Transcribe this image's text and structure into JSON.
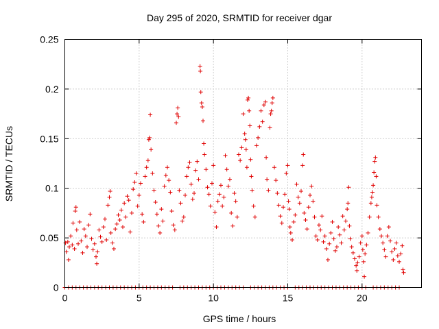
{
  "chart_data": {
    "type": "scatter",
    "title": "Day 295 of 2020, SRMTID for receiver dgar",
    "xlabel": "GPS time / hours",
    "ylabel": "SRMTID / TECUs",
    "xlim": [
      0,
      24
    ],
    "ylim": [
      0,
      0.25
    ],
    "x_ticks": [
      0,
      5,
      10,
      15,
      20
    ],
    "x_tick_labels": [
      "0",
      "5",
      "10",
      "15",
      "20"
    ],
    "y_ticks": [
      0,
      0.05,
      0.1,
      0.15,
      0.2,
      0.25
    ],
    "y_tick_labels": [
      "0",
      "0.05",
      "0.1",
      "0.15",
      "0.2",
      "0.25"
    ],
    "grid": true,
    "marker": "+",
    "color": "#e00000",
    "series": [
      {
        "name": "SRMTID",
        "points": [
          [
            0.05,
            0.045
          ],
          [
            0.1,
            0.036
          ],
          [
            0.2,
            0.046
          ],
          [
            0.25,
            0.028
          ],
          [
            0.3,
            0.041
          ],
          [
            0.4,
            0.052
          ],
          [
            0.5,
            0.043
          ],
          [
            0.55,
            0.065
          ],
          [
            0.65,
            0.039
          ],
          [
            0.7,
            0.077
          ],
          [
            0.75,
            0.081
          ],
          [
            0.8,
            0.058
          ],
          [
            0.9,
            0.044
          ],
          [
            1.0,
            0.066
          ],
          [
            1.1,
            0.047
          ],
          [
            1.2,
            0.035
          ],
          [
            1.3,
            0.059
          ],
          [
            1.4,
            0.052
          ],
          [
            1.5,
            0.041
          ],
          [
            1.6,
            0.063
          ],
          [
            1.7,
            0.074
          ],
          [
            1.8,
            0.049
          ],
          [
            1.9,
            0.038
          ],
          [
            2.0,
            0.044
          ],
          [
            2.1,
            0.031
          ],
          [
            2.15,
            0.024
          ],
          [
            2.2,
            0.036
          ],
          [
            2.3,
            0.058
          ],
          [
            2.4,
            0.051
          ],
          [
            2.5,
            0.046
          ],
          [
            2.6,
            0.061
          ],
          [
            2.7,
            0.069
          ],
          [
            2.8,
            0.048
          ],
          [
            2.9,
            0.083
          ],
          [
            3.0,
            0.091
          ],
          [
            3.05,
            0.097
          ],
          [
            3.1,
            0.055
          ],
          [
            3.2,
            0.045
          ],
          [
            3.3,
            0.039
          ],
          [
            3.4,
            0.059
          ],
          [
            3.5,
            0.064
          ],
          [
            3.6,
            0.073
          ],
          [
            3.7,
            0.068
          ],
          [
            3.8,
            0.078
          ],
          [
            3.9,
            0.061
          ],
          [
            4.0,
            0.085
          ],
          [
            4.1,
            0.071
          ],
          [
            4.2,
            0.092
          ],
          [
            4.3,
            0.088
          ],
          [
            4.4,
            0.056
          ],
          [
            4.5,
            0.075
          ],
          [
            4.6,
            0.099
          ],
          [
            4.7,
            0.106
          ],
          [
            4.8,
            0.115
          ],
          [
            4.9,
            0.082
          ],
          [
            5.0,
            0.093
          ],
          [
            5.1,
            0.105
          ],
          [
            5.2,
            0.074
          ],
          [
            5.3,
            0.066
          ],
          [
            5.4,
            0.112
          ],
          [
            5.5,
            0.121
          ],
          [
            5.6,
            0.128
          ],
          [
            5.65,
            0.149
          ],
          [
            5.7,
            0.151
          ],
          [
            5.75,
            0.174
          ],
          [
            5.8,
            0.139
          ],
          [
            5.9,
            0.115
          ],
          [
            6.0,
            0.098
          ],
          [
            6.1,
            0.086
          ],
          [
            6.2,
            0.074
          ],
          [
            6.3,
            0.062
          ],
          [
            6.4,
            0.055
          ],
          [
            6.5,
            0.079
          ],
          [
            6.6,
            0.067
          ],
          [
            6.7,
            0.102
          ],
          [
            6.8,
            0.113
          ],
          [
            6.9,
            0.121
          ],
          [
            7.0,
            0.108
          ],
          [
            7.1,
            0.096
          ],
          [
            7.2,
            0.077
          ],
          [
            7.3,
            0.063
          ],
          [
            7.4,
            0.058
          ],
          [
            7.5,
            0.166
          ],
          [
            7.55,
            0.175
          ],
          [
            7.6,
            0.181
          ],
          [
            7.65,
            0.172
          ],
          [
            7.7,
            0.098
          ],
          [
            7.8,
            0.085
          ],
          [
            7.9,
            0.067
          ],
          [
            8.0,
            0.071
          ],
          [
            8.1,
            0.093
          ],
          [
            8.2,
            0.112
          ],
          [
            8.3,
            0.121
          ],
          [
            8.4,
            0.126
          ],
          [
            8.5,
            0.104
          ],
          [
            8.6,
            0.089
          ],
          [
            8.7,
            0.095
          ],
          [
            8.8,
            0.118
          ],
          [
            8.9,
            0.127
          ],
          [
            9.0,
            0.109
          ],
          [
            9.1,
            0.223
          ],
          [
            9.12,
            0.218
          ],
          [
            9.15,
            0.197
          ],
          [
            9.2,
            0.186
          ],
          [
            9.25,
            0.182
          ],
          [
            9.3,
            0.168
          ],
          [
            9.35,
            0.145
          ],
          [
            9.4,
            0.134
          ],
          [
            9.5,
            0.119
          ],
          [
            9.6,
            0.101
          ],
          [
            9.7,
            0.094
          ],
          [
            9.8,
            0.082
          ],
          [
            9.9,
            0.105
          ],
          [
            10.0,
            0.123
          ],
          [
            10.1,
            0.076
          ],
          [
            10.2,
            0.061
          ],
          [
            10.3,
            0.087
          ],
          [
            10.4,
            0.094
          ],
          [
            10.5,
            0.103
          ],
          [
            10.6,
            0.082
          ],
          [
            10.7,
            0.091
          ],
          [
            10.8,
            0.133
          ],
          [
            10.9,
            0.119
          ],
          [
            11.0,
            0.102
          ],
          [
            11.1,
            0.109
          ],
          [
            11.2,
            0.075
          ],
          [
            11.3,
            0.062
          ],
          [
            11.4,
            0.095
          ],
          [
            11.5,
            0.087
          ],
          [
            11.6,
            0.071
          ],
          [
            11.7,
            0.134
          ],
          [
            11.8,
            0.128
          ],
          [
            11.9,
            0.141
          ],
          [
            12.0,
            0.175
          ],
          [
            12.1,
            0.155
          ],
          [
            12.15,
            0.149
          ],
          [
            12.2,
            0.139
          ],
          [
            12.25,
            0.121
          ],
          [
            12.3,
            0.189
          ],
          [
            12.35,
            0.191
          ],
          [
            12.4,
            0.178
          ],
          [
            12.45,
            0.163
          ],
          [
            12.5,
            0.129
          ],
          [
            12.55,
            0.112
          ],
          [
            12.6,
            0.098
          ],
          [
            12.7,
            0.082
          ],
          [
            12.8,
            0.071
          ],
          [
            12.9,
            0.143
          ],
          [
            13.0,
            0.151
          ],
          [
            13.1,
            0.162
          ],
          [
            13.2,
            0.178
          ],
          [
            13.3,
            0.167
          ],
          [
            13.4,
            0.184
          ],
          [
            13.5,
            0.187
          ],
          [
            13.55,
            0.131
          ],
          [
            13.6,
            0.109
          ],
          [
            13.7,
            0.098
          ],
          [
            13.8,
            0.161
          ],
          [
            13.85,
            0.175
          ],
          [
            13.9,
            0.178
          ],
          [
            13.95,
            0.186
          ],
          [
            14.0,
            0.191
          ],
          [
            14.1,
            0.121
          ],
          [
            14.2,
            0.108
          ],
          [
            14.3,
            0.095
          ],
          [
            14.4,
            0.083
          ],
          [
            14.5,
            0.072
          ],
          [
            14.6,
            0.065
          ],
          [
            14.7,
            0.081
          ],
          [
            14.8,
            0.094
          ],
          [
            14.9,
            0.115
          ],
          [
            15.0,
            0.123
          ],
          [
            15.05,
            0.087
          ],
          [
            15.1,
            0.079
          ],
          [
            15.15,
            0.061
          ],
          [
            15.2,
            0.055
          ],
          [
            15.3,
            0.048
          ],
          [
            15.4,
            0.066
          ],
          [
            15.5,
            0.073
          ],
          [
            15.6,
            0.104
          ],
          [
            15.7,
            0.091
          ],
          [
            15.8,
            0.085
          ],
          [
            15.9,
            0.097
          ],
          [
            16.0,
            0.123
          ],
          [
            16.05,
            0.134
          ],
          [
            16.1,
            0.075
          ],
          [
            16.2,
            0.068
          ],
          [
            16.3,
            0.059
          ],
          [
            16.4,
            0.081
          ],
          [
            16.5,
            0.093
          ],
          [
            16.6,
            0.102
          ],
          [
            16.7,
            0.087
          ],
          [
            16.8,
            0.071
          ],
          [
            16.9,
            0.052
          ],
          [
            17.0,
            0.048
          ],
          [
            17.1,
            0.063
          ],
          [
            17.2,
            0.058
          ],
          [
            17.3,
            0.072
          ],
          [
            17.4,
            0.046
          ],
          [
            17.5,
            0.052
          ],
          [
            17.6,
            0.039
          ],
          [
            17.7,
            0.028
          ],
          [
            17.8,
            0.044
          ],
          [
            17.9,
            0.055
          ],
          [
            18.0,
            0.066
          ],
          [
            18.1,
            0.049
          ],
          [
            18.2,
            0.037
          ],
          [
            18.3,
            0.041
          ],
          [
            18.4,
            0.061
          ],
          [
            18.5,
            0.053
          ],
          [
            18.6,
            0.045
          ],
          [
            18.7,
            0.072
          ],
          [
            18.8,
            0.058
          ],
          [
            18.9,
            0.067
          ],
          [
            19.0,
            0.079
          ],
          [
            19.05,
            0.085
          ],
          [
            19.1,
            0.101
          ],
          [
            19.15,
            0.062
          ],
          [
            19.2,
            0.049
          ],
          [
            19.3,
            0.041
          ],
          [
            19.4,
            0.035
          ],
          [
            19.5,
            0.029
          ],
          [
            19.6,
            0.022
          ],
          [
            19.65,
            0.017
          ],
          [
            19.7,
            0.025
          ],
          [
            19.8,
            0.031
          ],
          [
            19.9,
            0.045
          ],
          [
            20.0,
            0.052
          ],
          [
            20.05,
            0.038
          ],
          [
            20.1,
            0.026
          ],
          [
            20.15,
            0.011
          ],
          [
            20.2,
            0.034
          ],
          [
            20.3,
            0.043
          ],
          [
            20.4,
            0.055
          ],
          [
            20.5,
            0.071
          ],
          [
            20.6,
            0.085
          ],
          [
            20.65,
            0.091
          ],
          [
            20.7,
            0.096
          ],
          [
            20.75,
            0.103
          ],
          [
            20.8,
            0.116
          ],
          [
            20.85,
            0.127
          ],
          [
            20.9,
            0.131
          ],
          [
            20.95,
            0.112
          ],
          [
            21.0,
            0.083
          ],
          [
            21.1,
            0.071
          ],
          [
            21.2,
            0.059
          ],
          [
            21.3,
            0.052
          ],
          [
            21.4,
            0.045
          ],
          [
            21.5,
            0.038
          ],
          [
            21.6,
            0.031
          ],
          [
            21.7,
            0.052
          ],
          [
            21.8,
            0.061
          ],
          [
            21.9,
            0.047
          ],
          [
            22.0,
            0.036
          ],
          [
            22.1,
            0.028
          ],
          [
            22.2,
            0.039
          ],
          [
            22.3,
            0.045
          ],
          [
            22.4,
            0.032
          ],
          [
            22.5,
            0.026
          ],
          [
            22.6,
            0.034
          ],
          [
            22.7,
            0.042
          ],
          [
            22.75,
            0.018
          ],
          [
            22.8,
            0.015
          ]
        ],
        "zero_x": [
          0.0,
          0.25,
          0.5,
          0.75,
          1.0,
          1.25,
          1.5,
          1.75,
          2.0,
          2.25,
          2.5,
          2.75,
          3.0,
          3.25,
          3.5,
          3.75,
          4.0,
          4.25,
          4.5,
          4.75,
          5.0,
          5.25,
          5.5,
          5.75,
          6.0,
          6.25,
          6.5,
          6.75,
          7.0,
          7.25,
          7.75,
          8.0,
          8.25,
          8.5,
          8.75,
          9.0,
          9.25,
          9.5,
          9.75,
          10.0,
          10.25,
          10.5,
          10.75,
          11.0,
          11.25,
          11.5,
          11.75,
          12.0,
          12.5,
          12.75,
          13.0,
          13.25,
          13.5,
          13.75,
          14.0,
          14.25,
          14.5,
          14.75,
          15.0,
          15.5,
          15.75,
          16.0,
          16.25,
          16.5,
          16.75,
          17.0,
          17.25,
          17.5,
          17.75,
          18.0,
          18.25,
          18.5,
          18.75,
          19.0,
          19.25,
          19.5,
          19.75,
          20.0,
          20.25,
          20.75,
          21.0,
          21.25,
          21.5,
          21.75,
          22.0,
          22.25,
          22.5
        ]
      }
    ]
  }
}
